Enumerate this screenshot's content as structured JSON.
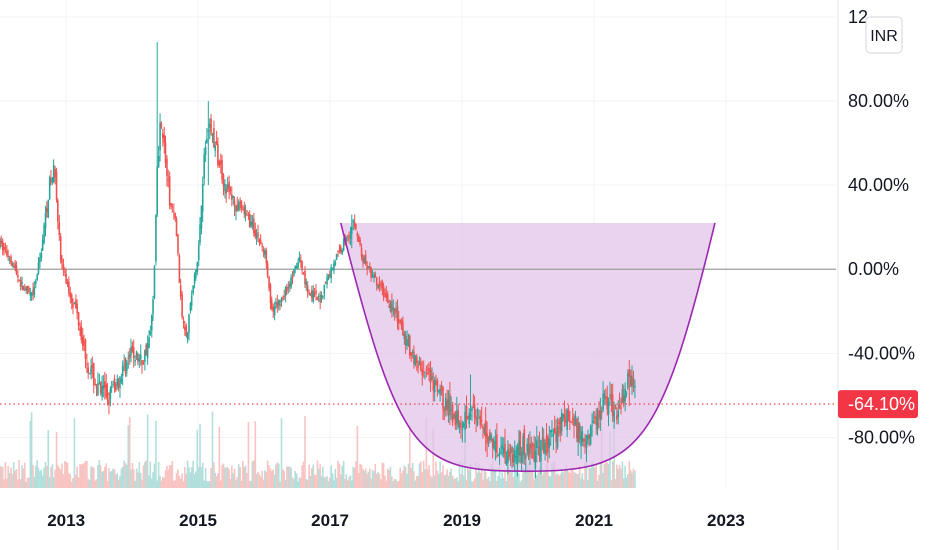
{
  "chart_data": {
    "type": "candlestick",
    "y_unit": "%",
    "ylim": [
      -104,
      128
    ],
    "xlim": [
      "2012-01-01",
      "2024-09-01"
    ],
    "y_ticks": [
      {
        "value": 80,
        "label": "80.00%"
      },
      {
        "value": 40,
        "label": "40.00%"
      },
      {
        "value": 0,
        "label": "0.00%"
      },
      {
        "value": -40,
        "label": "-40.00%"
      },
      {
        "value": -80,
        "label": "-80.00%"
      }
    ],
    "top_tick_label": "12",
    "x_ticks": [
      {
        "date": "2013-01-01",
        "label": "2013"
      },
      {
        "date": "2015-01-01",
        "label": "2015"
      },
      {
        "date": "2017-01-01",
        "label": "2017"
      },
      {
        "date": "2019-01-01",
        "label": "2019"
      },
      {
        "date": "2021-01-01",
        "label": "2021"
      },
      {
        "date": "2023-01-01",
        "label": "2023"
      }
    ],
    "currency_button": "INR",
    "current_value": -64.1,
    "current_value_label": "-64.10%",
    "baseline": 0,
    "series_close_path": [
      [
        "2012-01-01",
        12
      ],
      [
        "2012-03-01",
        5
      ],
      [
        "2012-05-01",
        -8
      ],
      [
        "2012-07-01",
        -14
      ],
      [
        "2012-08-15",
        8
      ],
      [
        "2012-10-01",
        40
      ],
      [
        "2012-11-01",
        48
      ],
      [
        "2012-12-01",
        5
      ],
      [
        "2013-01-15",
        -10
      ],
      [
        "2013-03-01",
        -20
      ],
      [
        "2013-05-01",
        -45
      ],
      [
        "2013-07-01",
        -58
      ],
      [
        "2013-09-01",
        -60
      ],
      [
        "2013-11-01",
        -50
      ],
      [
        "2014-01-01",
        -40
      ],
      [
        "2014-03-01",
        -44
      ],
      [
        "2014-04-15",
        -30
      ],
      [
        "2014-05-01",
        -10
      ],
      [
        "2014-05-20",
        45
      ],
      [
        "2014-06-10",
        75
      ],
      [
        "2014-07-01",
        55
      ],
      [
        "2014-08-01",
        30
      ],
      [
        "2014-09-01",
        22
      ],
      [
        "2014-10-01",
        -20
      ],
      [
        "2014-11-01",
        -30
      ],
      [
        "2014-12-01",
        -10
      ],
      [
        "2015-01-01",
        5
      ],
      [
        "2015-02-01",
        50
      ],
      [
        "2015-03-01",
        70
      ],
      [
        "2015-04-15",
        55
      ],
      [
        "2015-06-01",
        40
      ],
      [
        "2015-08-01",
        30
      ],
      [
        "2015-10-01",
        25
      ],
      [
        "2015-12-01",
        15
      ],
      [
        "2016-01-15",
        5
      ],
      [
        "2016-02-15",
        -22
      ],
      [
        "2016-04-01",
        -15
      ],
      [
        "2016-06-01",
        -5
      ],
      [
        "2016-07-15",
        5
      ],
      [
        "2016-09-01",
        -10
      ],
      [
        "2016-11-01",
        -15
      ],
      [
        "2016-12-15",
        -5
      ],
      [
        "2017-02-01",
        5
      ],
      [
        "2017-04-01",
        15
      ],
      [
        "2017-05-15",
        22
      ],
      [
        "2017-07-01",
        5
      ],
      [
        "2017-09-01",
        -5
      ],
      [
        "2017-11-01",
        -12
      ],
      [
        "2018-01-01",
        -22
      ],
      [
        "2018-03-01",
        -35
      ],
      [
        "2018-05-01",
        -45
      ],
      [
        "2018-07-01",
        -52
      ],
      [
        "2018-09-01",
        -60
      ],
      [
        "2018-11-01",
        -68
      ],
      [
        "2019-01-01",
        -72
      ],
      [
        "2019-02-15",
        -65
      ],
      [
        "2019-04-01",
        -75
      ],
      [
        "2019-06-01",
        -80
      ],
      [
        "2019-08-01",
        -85
      ],
      [
        "2019-10-01",
        -87
      ],
      [
        "2019-12-01",
        -85
      ],
      [
        "2020-02-01",
        -86
      ],
      [
        "2020-04-01",
        -85
      ],
      [
        "2020-06-01",
        -78
      ],
      [
        "2020-07-15",
        -70
      ],
      [
        "2020-09-01",
        -72
      ],
      [
        "2020-11-01",
        -80
      ],
      [
        "2021-01-01",
        -74
      ],
      [
        "2021-03-01",
        -60
      ],
      [
        "2021-05-01",
        -68
      ],
      [
        "2021-06-15",
        -60
      ],
      [
        "2021-07-15",
        -50
      ],
      [
        "2021-08-15",
        -55
      ]
    ],
    "spikes": [
      {
        "date": "2014-05-20",
        "high": 108,
        "low": 50
      },
      {
        "date": "2015-03-01",
        "high": 80,
        "low": 40
      },
      {
        "date": "2017-05-01",
        "high": 26,
        "low": 10
      },
      {
        "date": "2019-02-15",
        "high": -50,
        "low": -70
      },
      {
        "date": "2021-07-15",
        "high": -45,
        "low": -65
      }
    ],
    "cup_pattern": {
      "left": [
        "2017-03-01",
        22
      ],
      "bottom": [
        "2020-01-01",
        -96
      ],
      "right": [
        "2022-11-01",
        22
      ],
      "fill": "#e1c4e9",
      "stroke": "#9c27b0"
    },
    "colors": {
      "up": "#26a69a",
      "down": "#ef5350",
      "vol_up": "#b2dfdb",
      "vol_down": "#f8c4c2",
      "baseline": "#9e9e9e",
      "grid": "#f0f3fa",
      "current": "#f23645",
      "axis_border": "#e0e3eb"
    }
  }
}
